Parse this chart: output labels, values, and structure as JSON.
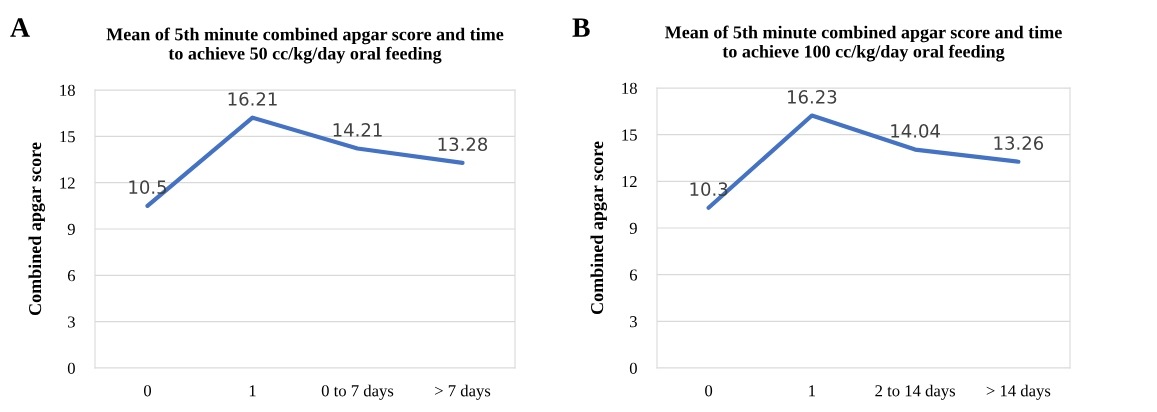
{
  "chart_data": [
    {
      "type": "line",
      "title": "Mean of 5th minute combined apgar score and time\nto achieve 50 cc/kg/day oral feeding",
      "ylabel": "Combined apgar score",
      "annotations": [
        "A"
      ],
      "categories": [
        "0",
        "1",
        "0 to 7 days",
        "> 7 days"
      ],
      "series": [
        {
          "color": "#4472c4",
          "values": [
            10.5,
            16.21,
            14.21,
            13.28
          ]
        }
      ],
      "ylim": [
        0,
        18
      ],
      "yticks": [
        0,
        3,
        6,
        9,
        12,
        15,
        18
      ],
      "grid": "y",
      "data_labels": true,
      "marker": "none",
      "line_style": "solid"
    },
    {
      "type": "line",
      "title": "Mean of 5th minute combined apgar score and time\nto achieve 100 cc/kg/day oral feeding",
      "ylabel": "Combined apgar score",
      "annotations": [
        "B"
      ],
      "categories": [
        "0",
        "1",
        "2 to 14 days",
        "> 14 days"
      ],
      "series": [
        {
          "color": "#4472c4",
          "values": [
            10.3,
            16.23,
            14.04,
            13.26
          ]
        }
      ],
      "ylim": [
        0,
        18
      ],
      "yticks": [
        0,
        3,
        6,
        9,
        12,
        15,
        18
      ],
      "grid": "y",
      "data_labels": true,
      "marker": "none",
      "line_style": "solid"
    }
  ]
}
